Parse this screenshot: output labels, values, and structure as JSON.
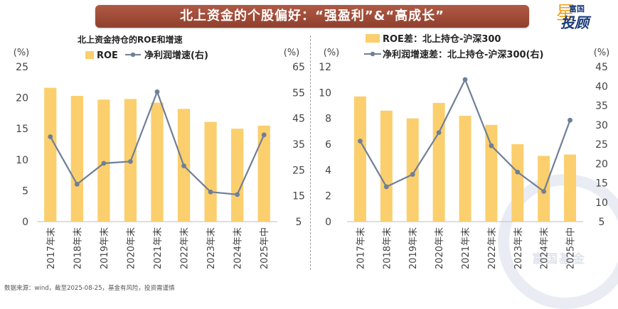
{
  "banner_title": "北上资金的个股偏好：“强盈利”&“高成长”",
  "logo": {
    "top": "富国",
    "main": "投顾",
    "star": "星"
  },
  "watermark": "富国基金",
  "footer": "数据来源：wind，截至2025-08-25，基金有风险，投资需谨慎",
  "colors": {
    "bar": "#fbcf6d",
    "line": "#6f7f97",
    "banner": "#9d4a36"
  },
  "chart_data": [
    {
      "type": "bar+line",
      "title": "北上资金持仓的ROE和增速",
      "categories": [
        "2017年末",
        "2018年末",
        "2019年末",
        "2020年末",
        "2021年末",
        "2022年末",
        "2023年末",
        "2024年末",
        "2025年中"
      ],
      "series": [
        {
          "name": "ROE",
          "type": "bar",
          "axis": "left",
          "values": [
            21.6,
            20.3,
            19.7,
            19.8,
            19.2,
            18.2,
            16.1,
            15.0,
            15.5
          ]
        },
        {
          "name": "净利润增速(右)",
          "type": "line",
          "axis": "right",
          "values": [
            37.9,
            19.5,
            27.6,
            28.3,
            55.3,
            26.6,
            16.5,
            15.5,
            38.6
          ]
        }
      ],
      "y_left": {
        "unit": "(%)",
        "min": 0,
        "max": 25,
        "step": 5
      },
      "y_right": {
        "unit": "(%)",
        "min": 5,
        "max": 65,
        "step": 10
      }
    },
    {
      "type": "bar+line",
      "title": "",
      "categories": [
        "2017年末",
        "2018年末",
        "2019年末",
        "2020年末",
        "2021年末",
        "2022年末",
        "2023年末",
        "2024年末",
        "2025年中"
      ],
      "series": [
        {
          "name": "ROE差：北上持仓-沪深300",
          "type": "bar",
          "axis": "left",
          "values": [
            9.7,
            8.6,
            8.0,
            9.2,
            8.2,
            7.5,
            6.0,
            5.1,
            5.2
          ]
        },
        {
          "name": "净利润增速差：北上持仓-沪深300(右)",
          "type": "line",
          "axis": "right",
          "values": [
            25.8,
            14.0,
            17.2,
            28.0,
            41.7,
            24.6,
            17.8,
            12.8,
            31.2
          ]
        }
      ],
      "y_left": {
        "unit": "(%)",
        "min": 0,
        "max": 12,
        "step": 2
      },
      "y_right": {
        "unit": "(%)",
        "min": 5,
        "max": 45,
        "step": 5
      }
    }
  ]
}
